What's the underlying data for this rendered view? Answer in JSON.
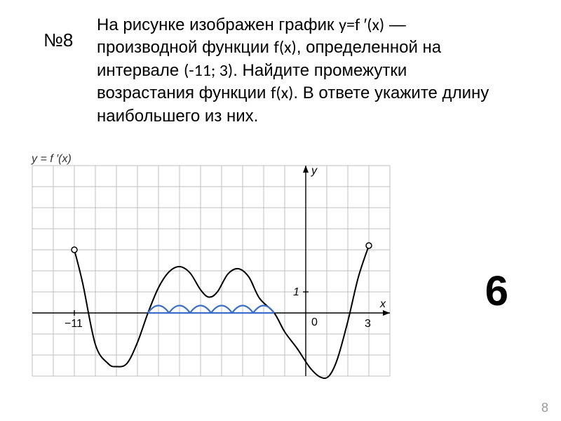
{
  "problem": {
    "number": "№8",
    "text_parts": {
      "p1": "На рисунке изображен график ",
      "fn1": "y=f ′(x)",
      "p2": " — производной функции ",
      "fn2": "f(x)",
      "p3": ", определенной на интервале ",
      "iv": "(-11; 3)",
      "p4": ". Найдите промежутки возрастания функции ",
      "fn3": "f(x)",
      "p5": ". В ответе укажите длину наибольшего из них."
    }
  },
  "axis_label": "y = f ′(x)",
  "answer": "6",
  "slide_number": "8",
  "chart": {
    "type": "line",
    "grid": {
      "cell": 30,
      "cols": 17,
      "rows": 10,
      "color": "#bfbfbf",
      "width": 1
    },
    "axes": {
      "origin_col": 13,
      "origin_row": 7,
      "color": "#000000",
      "width": 1.4,
      "labels": {
        "x": "x",
        "y": "y",
        "one": "1",
        "zero": "0",
        "minus11": "−11"
      },
      "label_fontsize": 16
    },
    "curve": {
      "color": "#000000",
      "width": 2,
      "endpoint_radius": 4,
      "endpoint_fill": "#ffffff",
      "points_xy": [
        [
          -11,
          3.0
        ],
        [
          -10.6,
          1.4
        ],
        [
          -10,
          -1.5
        ],
        [
          -9.4,
          -2.4
        ],
        [
          -9,
          -2.55
        ],
        [
          -8.5,
          -2.4
        ],
        [
          -8,
          -1.4
        ],
        [
          -7.5,
          0
        ],
        [
          -7,
          1.2
        ],
        [
          -6.5,
          1.95
        ],
        [
          -6,
          2.2
        ],
        [
          -5.5,
          1.9
        ],
        [
          -5,
          1.1
        ],
        [
          -4.6,
          0.75
        ],
        [
          -4.2,
          1.0
        ],
        [
          -3.7,
          1.85
        ],
        [
          -3.2,
          2.1
        ],
        [
          -2.7,
          1.7
        ],
        [
          -2.2,
          0.7
        ],
        [
          -1.5,
          0
        ],
        [
          -1,
          -0.9
        ],
        [
          -0.4,
          -1.7
        ],
        [
          0.2,
          -2.6
        ],
        [
          0.7,
          -3.05
        ],
        [
          1.1,
          -3.0
        ],
        [
          1.5,
          -2.2
        ],
        [
          2.0,
          -0.4
        ],
        [
          2.5,
          1.7
        ],
        [
          3.0,
          3.2
        ]
      ]
    },
    "highlight": {
      "color": "#3b6fc9",
      "width": 2.2,
      "baseline_y": 0,
      "arcs_x_from": -7.5,
      "arc_count": 6,
      "arc_width": 1.0,
      "arc_height": 0.35
    },
    "background": "#ffffff"
  }
}
